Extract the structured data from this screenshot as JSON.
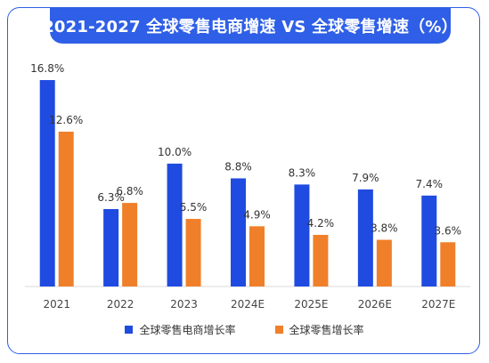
{
  "chart_data": {
    "type": "bar",
    "title": "2021-2027 全球零售电商增速 VS 全球零售增速（%）",
    "categories": [
      "2021",
      "2022",
      "2023",
      "2024E",
      "2025E",
      "2026E",
      "2027E"
    ],
    "series": [
      {
        "name": "全球零售电商增长率",
        "color": "#1f4be0",
        "values": [
          16.8,
          6.3,
          10.0,
          8.8,
          8.3,
          7.9,
          7.4
        ],
        "labels": [
          "16.8%",
          "6.3%",
          "10.0%",
          "8.8%",
          "8.3%",
          "7.9%",
          "7.4%"
        ]
      },
      {
        "name": "全球零售增长率",
        "color": "#f07f2a",
        "values": [
          12.6,
          6.8,
          5.5,
          4.9,
          4.2,
          3.8,
          3.6
        ],
        "labels": [
          "12.6%",
          "6.8%",
          "5.5%",
          "4.9%",
          "4.2%",
          "3.8%",
          "3.6%"
        ]
      }
    ],
    "ylim": [
      0,
      16.8
    ],
    "grid": false,
    "legend_position": "bottom-center"
  }
}
